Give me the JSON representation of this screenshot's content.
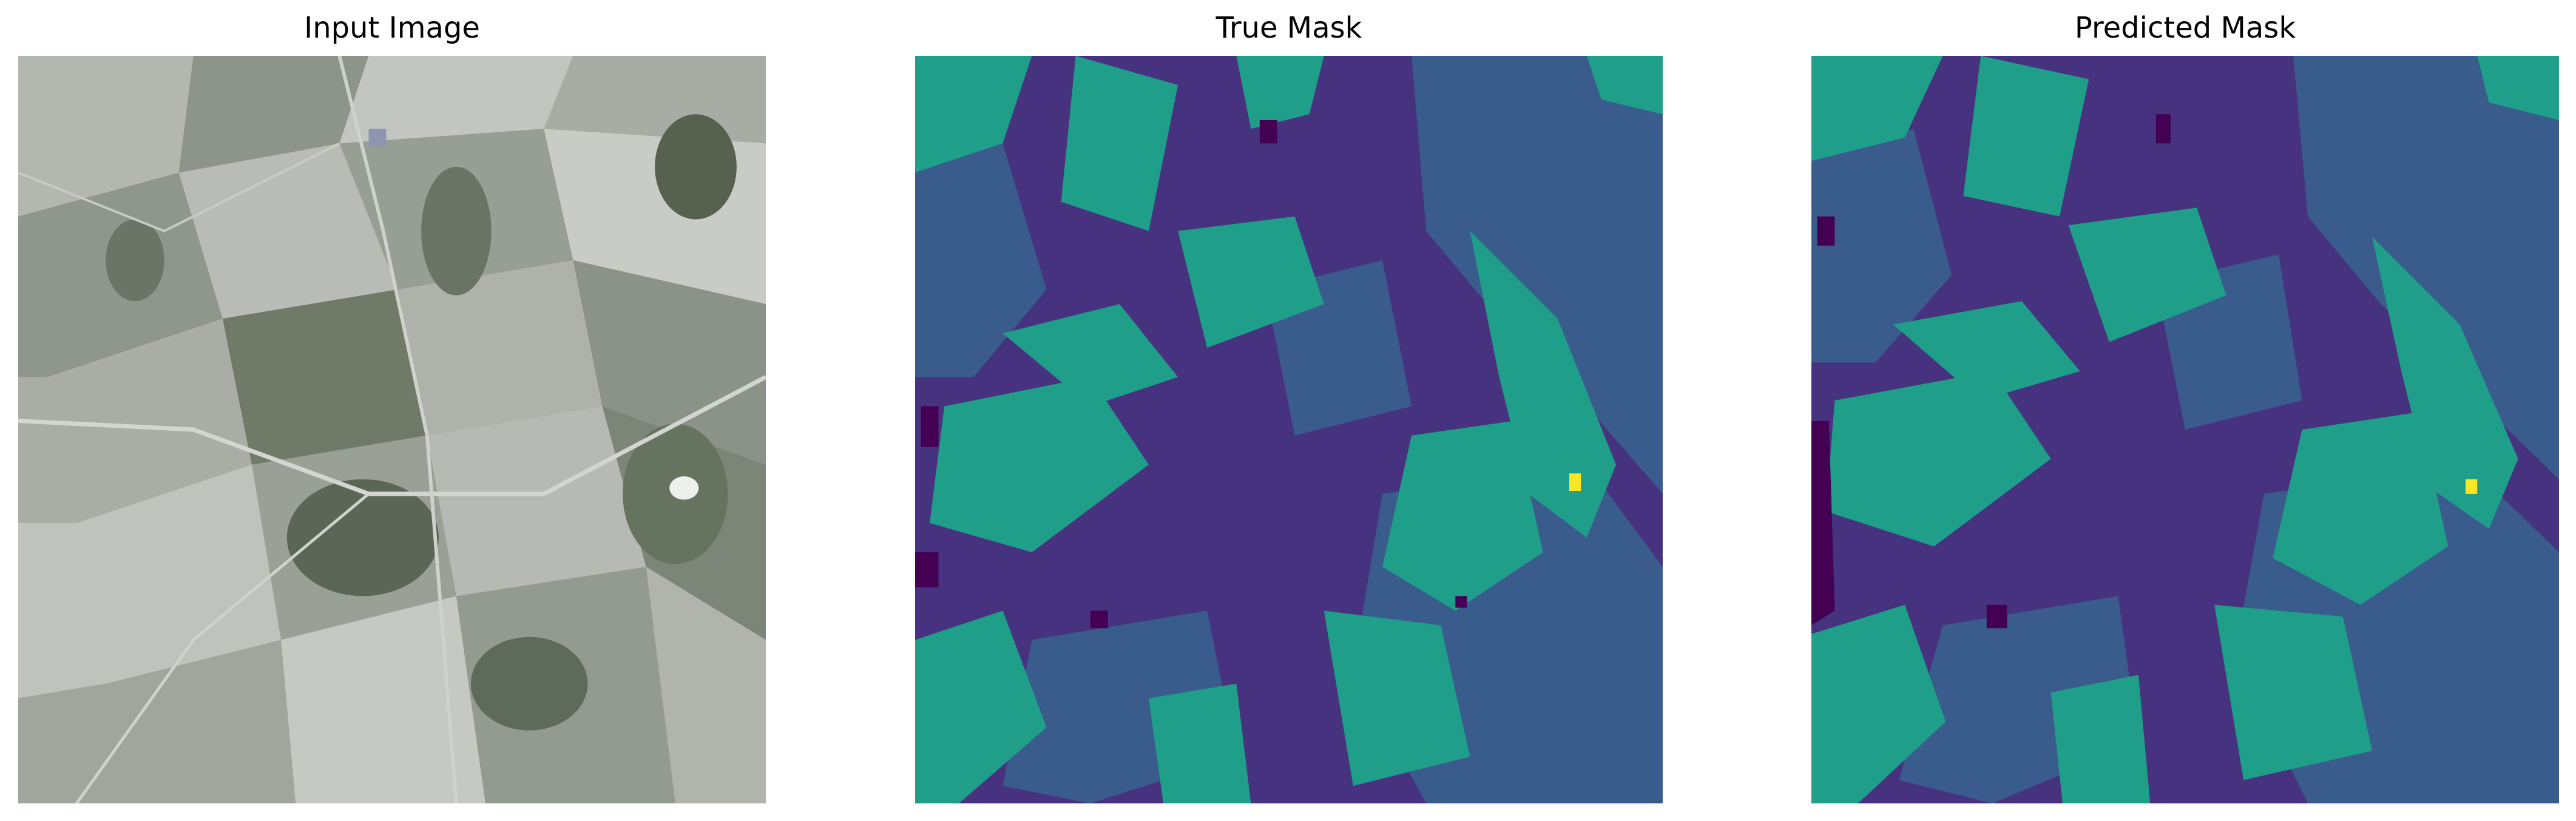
{
  "panels": [
    {
      "title": "Input Image"
    },
    {
      "title": "True Mask"
    },
    {
      "title": "Predicted Mask"
    }
  ],
  "colors": {
    "background": "#ffffff",
    "mask_classes": [
      "#440154",
      "#46327e",
      "#3a5c8c",
      "#1f9e89",
      "#fde725"
    ],
    "input_tones": [
      "#9ea39c",
      "#8a9086",
      "#b8bbb5",
      "#5e6a58",
      "#cfd1cc"
    ]
  }
}
